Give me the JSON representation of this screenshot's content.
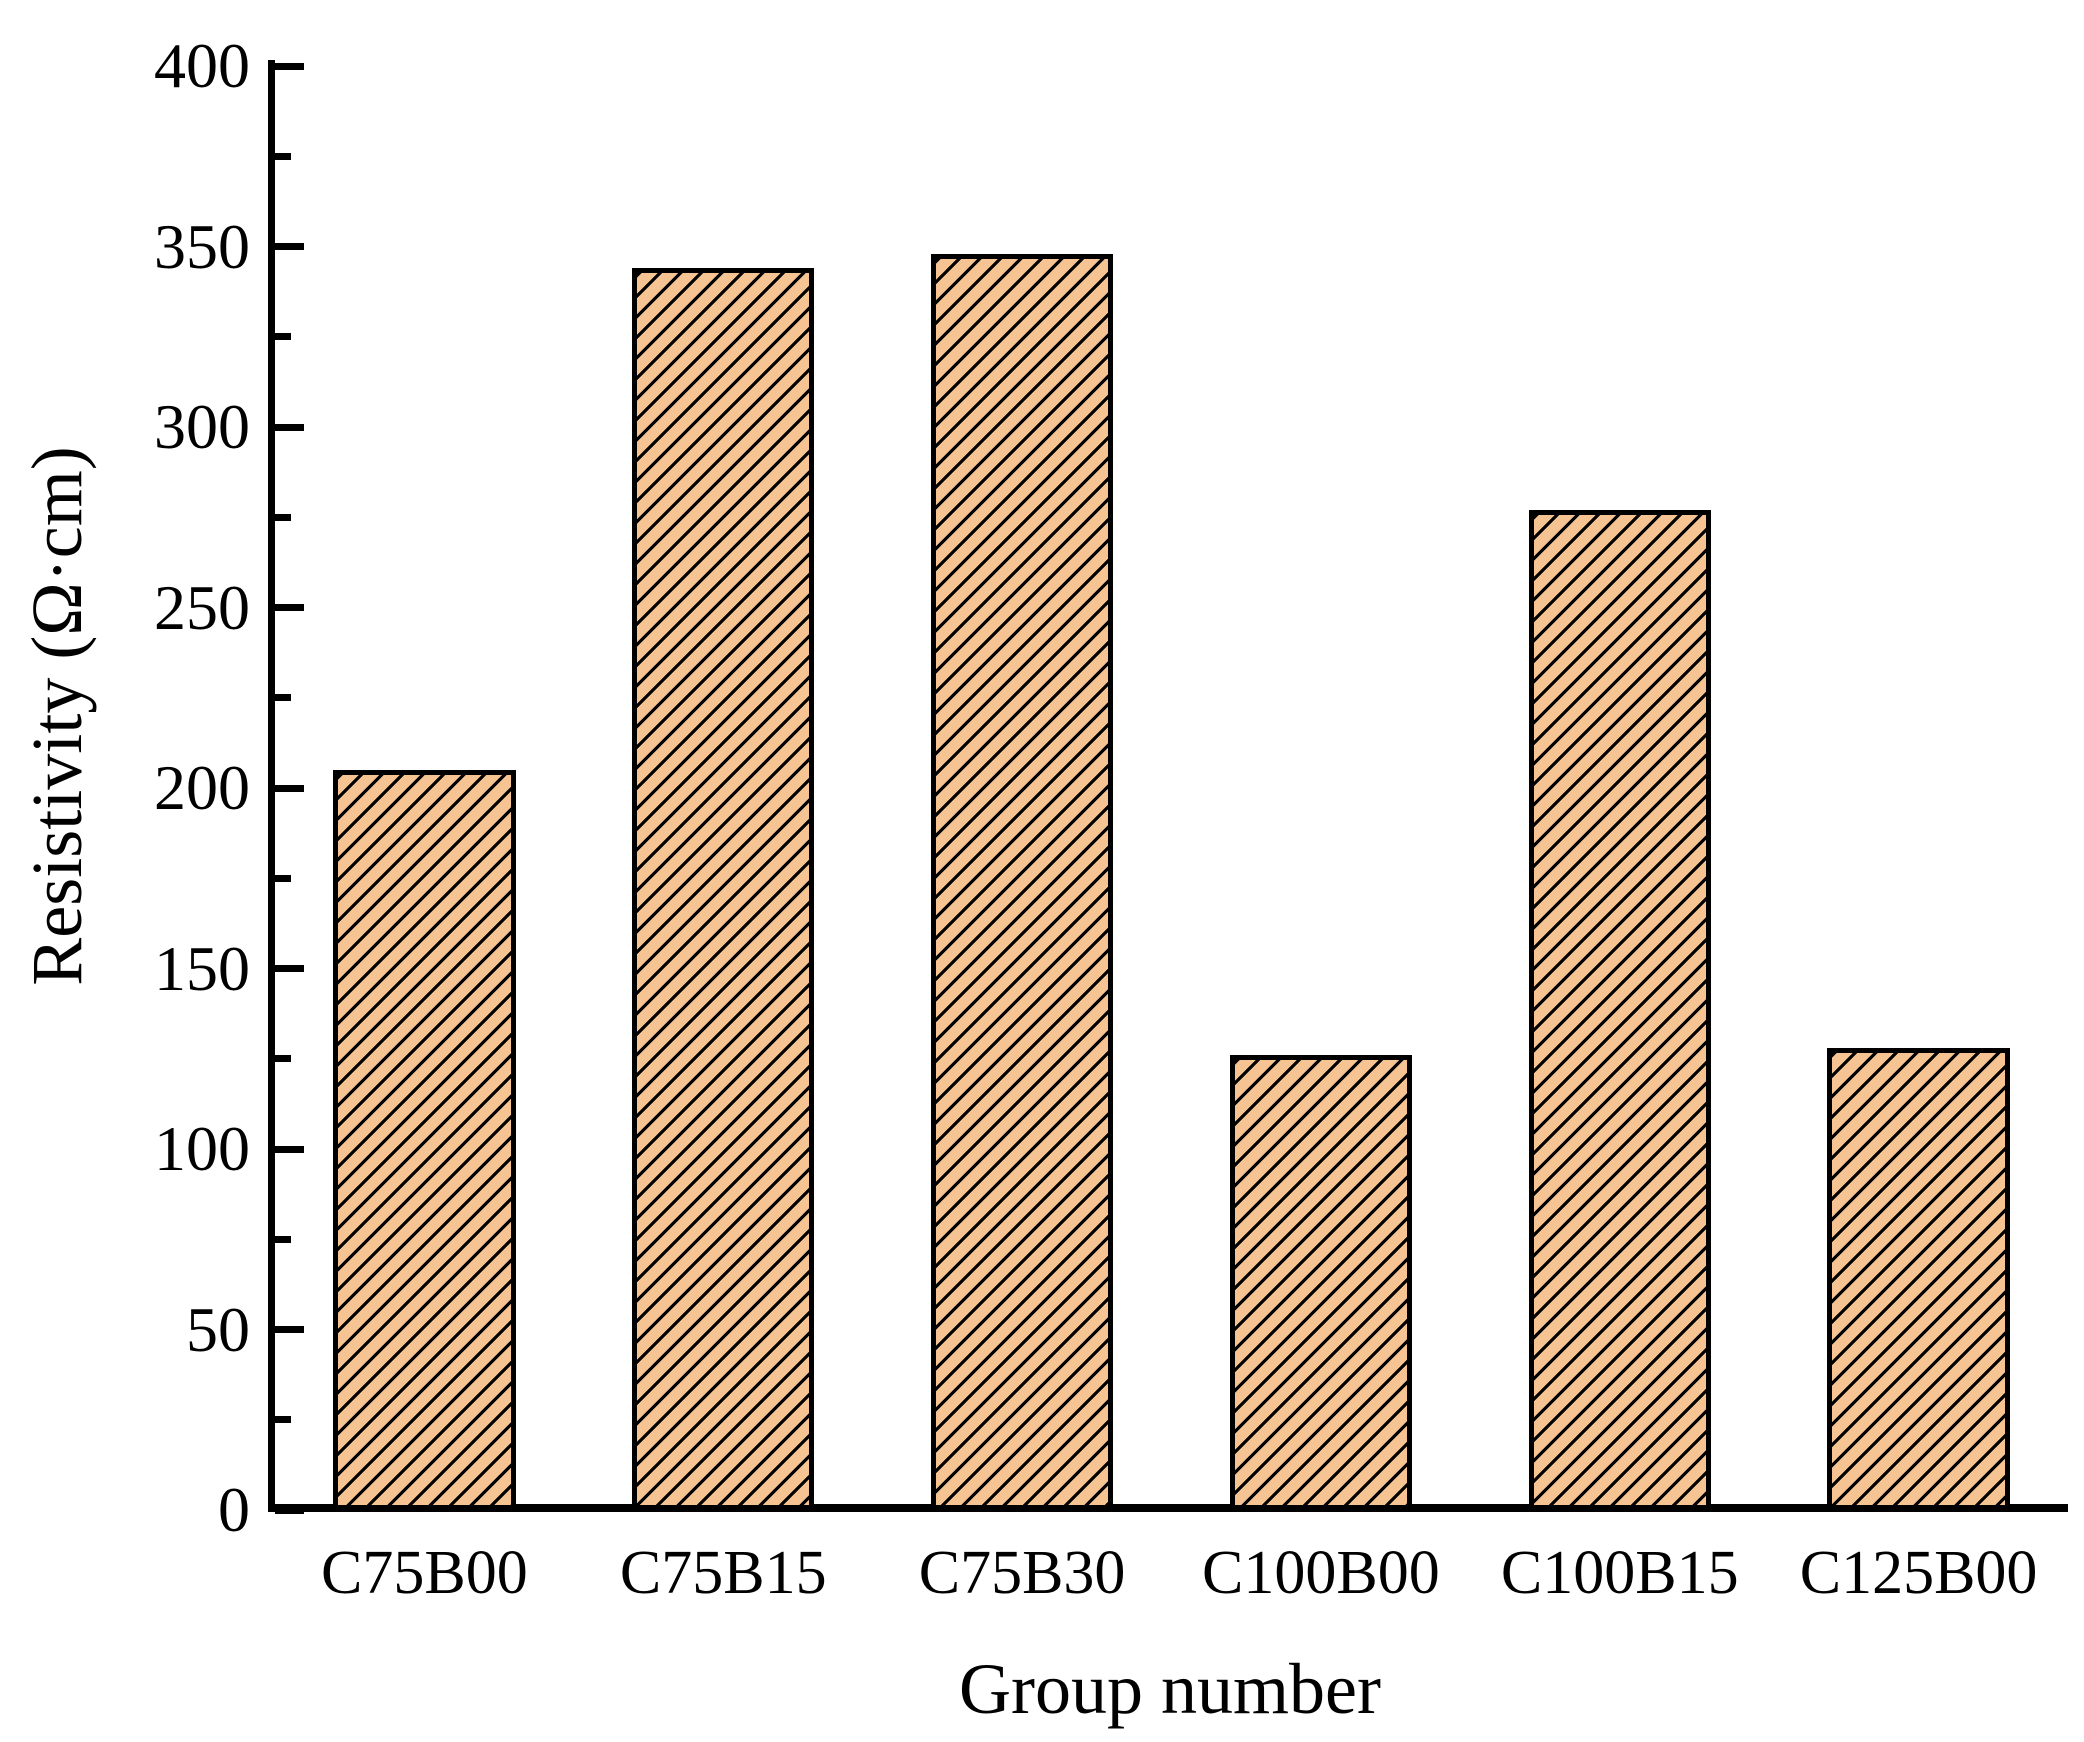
{
  "chart_data": {
    "type": "bar",
    "title": "",
    "xlabel": "Group number",
    "ylabel": "Resistivity (Ω·cm)",
    "categories": [
      "C75B00",
      "C75B15",
      "C75B30",
      "C100B00",
      "C100B15",
      "C125B00"
    ],
    "values": [
      205,
      344,
      348,
      126,
      277,
      128
    ],
    "ylim": [
      0,
      400
    ],
    "ytick_major_step": 50,
    "ytick_minor_step": 25,
    "ytick_labels": [
      "0",
      "50",
      "100",
      "150",
      "200",
      "250",
      "300",
      "350",
      "400"
    ],
    "grid": "off",
    "legend": "none",
    "bar_fill_color": "#F6C492",
    "bar_edge_color": "#000000",
    "hatch_style": "diagonal-forward-slash",
    "hatch_color": "#000000",
    "axis_color": "#000000",
    "background_color": "#FFFFFF",
    "bar_slot_fraction": 0.61
  }
}
